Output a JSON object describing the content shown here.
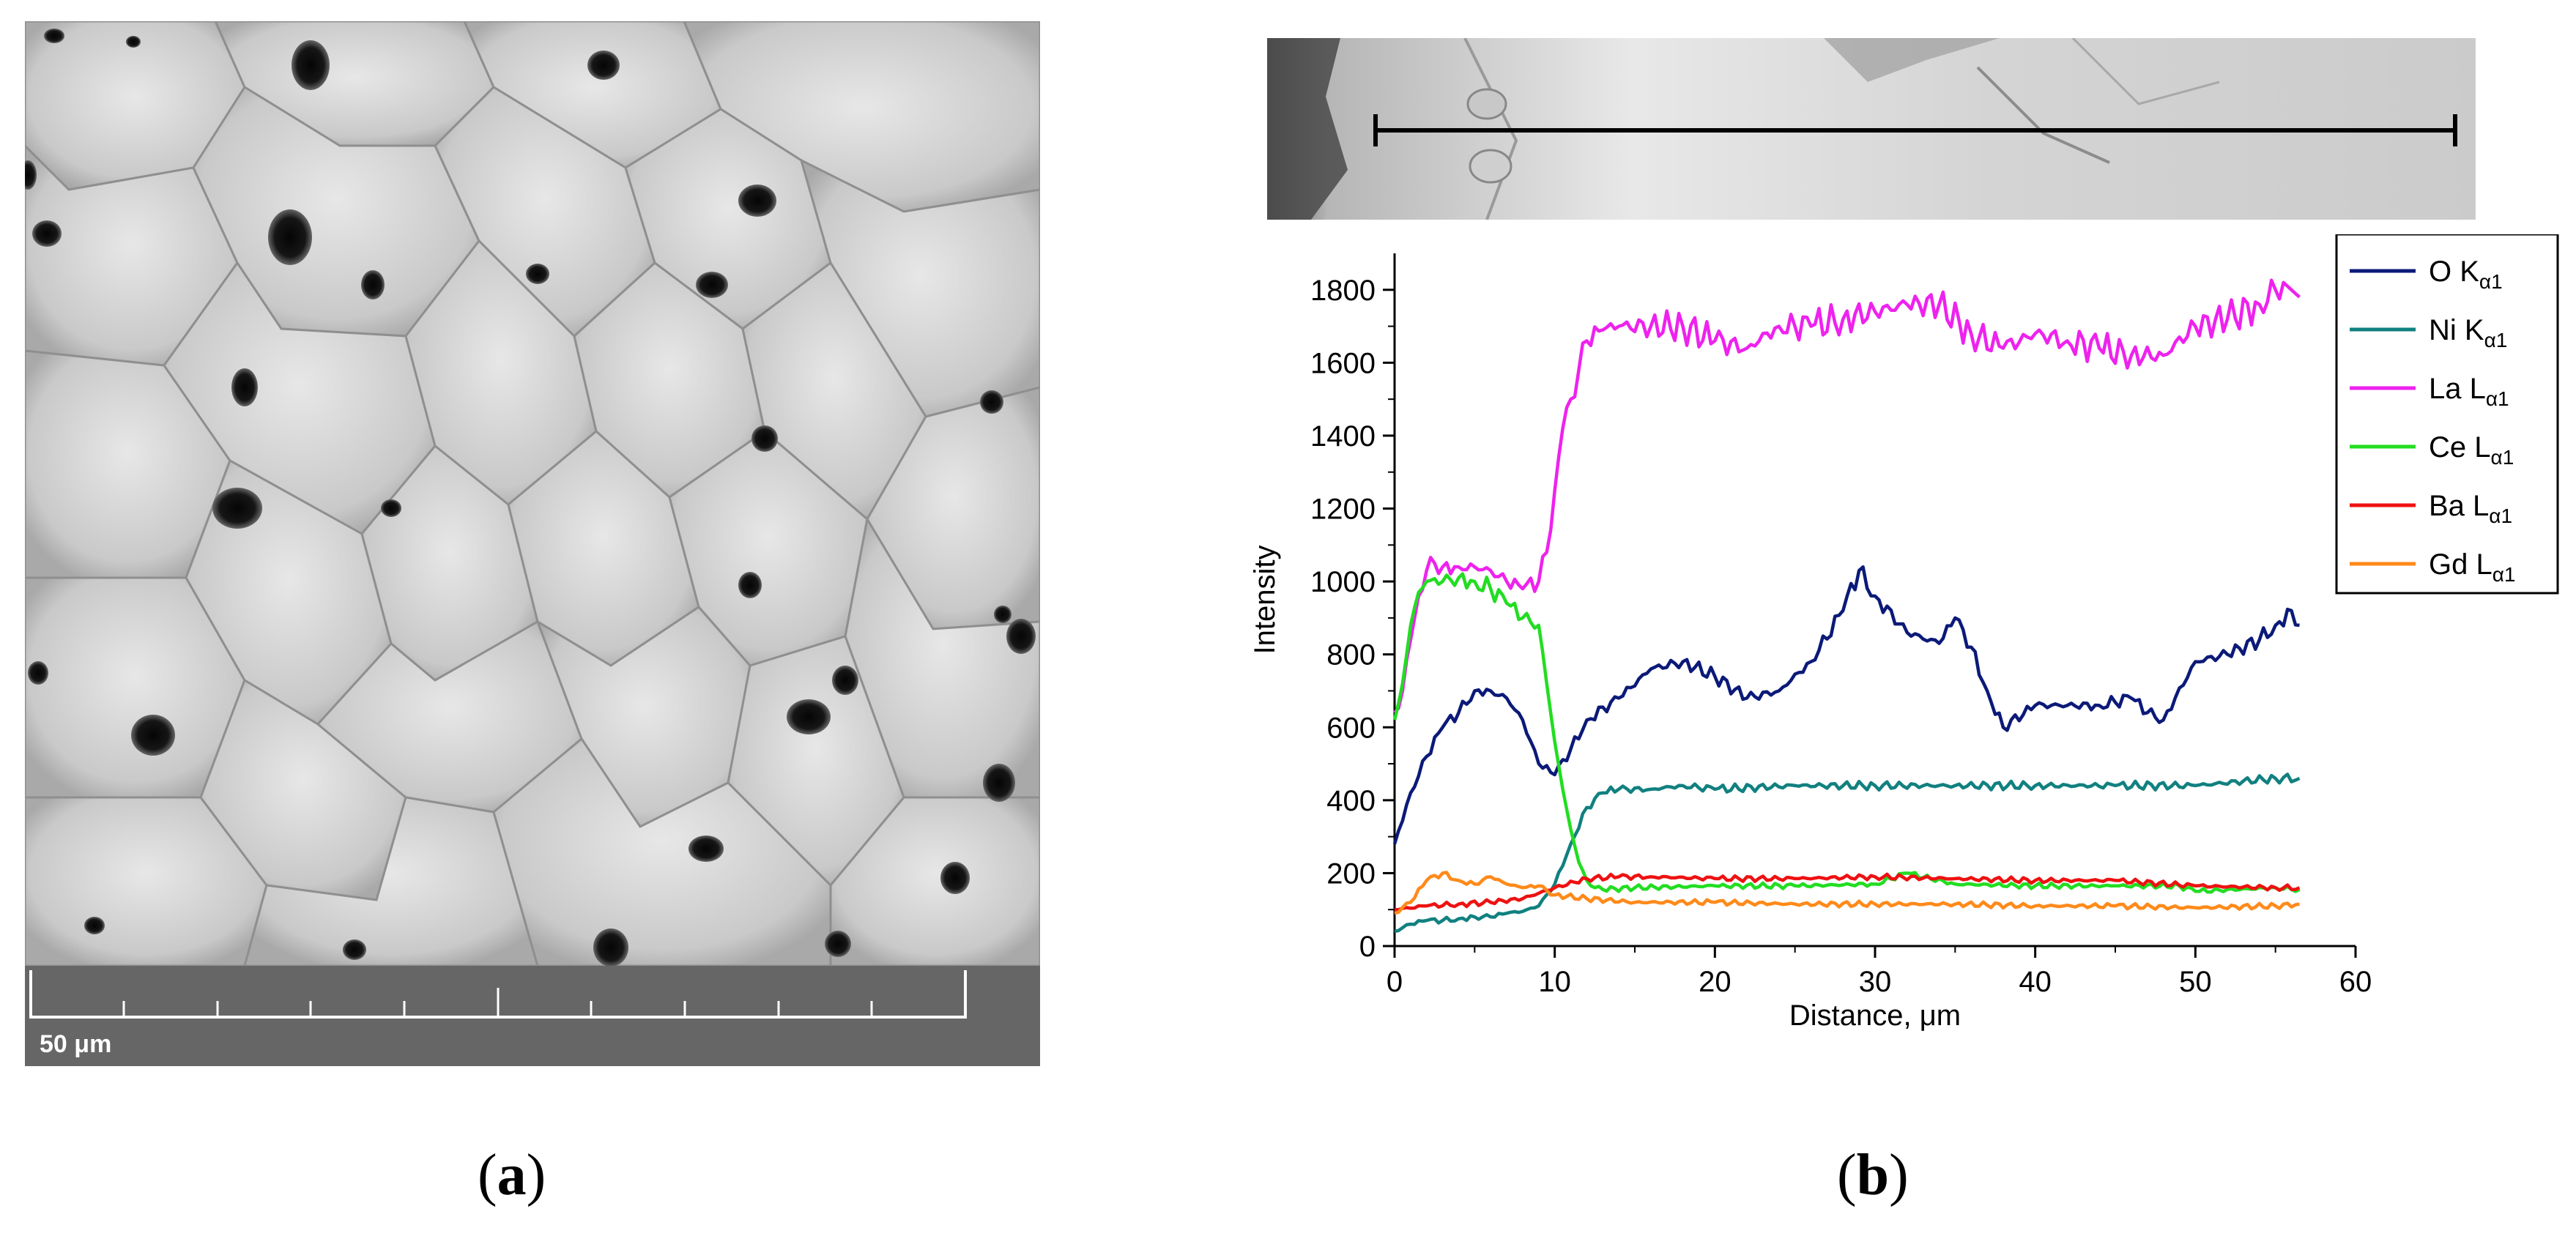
{
  "panel_a": {
    "scale_label": "50 μm",
    "caption_letter": "a"
  },
  "panel_b": {
    "caption_letter": "b"
  },
  "colors": {
    "O": "#0b1a78",
    "Ni": "#118080",
    "La": "#ee22ee",
    "Ce": "#22dd22",
    "Ba": "#ee1111",
    "Gd": "#ff8a1a"
  },
  "chart_data": {
    "type": "line",
    "title": "",
    "xlabel": "Distance, μm",
    "ylabel": "Intensity",
    "xlim": [
      0,
      60
    ],
    "ylim": [
      0,
      1900
    ],
    "xticks": [
      "0",
      "10",
      "20",
      "30",
      "40",
      "50",
      "60"
    ],
    "yticks": [
      "0",
      "200",
      "400",
      "600",
      "800",
      "1000",
      "1200",
      "1400",
      "1600",
      "1800"
    ],
    "xtick_values": [
      0,
      10,
      20,
      30,
      40,
      50,
      60
    ],
    "ytick_values": [
      0,
      200,
      400,
      600,
      800,
      1000,
      1200,
      1400,
      1600,
      1800
    ],
    "legend_position": "right",
    "series": [
      {
        "name": "O",
        "line": "K",
        "sub": "α1",
        "color_key": "O",
        "x": [
          0,
          1,
          2,
          3,
          4,
          5,
          6,
          7,
          8,
          9,
          10,
          11,
          12,
          14,
          16,
          18,
          20,
          22,
          24,
          26,
          28,
          29,
          30,
          32,
          34,
          35,
          36,
          37,
          38,
          40,
          42,
          44,
          46,
          47,
          48,
          50,
          52,
          54,
          55,
          56,
          56.5
        ],
        "y": [
          280,
          420,
          520,
          600,
          640,
          700,
          700,
          680,
          620,
          500,
          470,
          540,
          620,
          680,
          760,
          780,
          740,
          680,
          700,
          780,
          920,
          1030,
          960,
          860,
          830,
          900,
          820,
          700,
          600,
          660,
          660,
          660,
          680,
          640,
          620,
          780,
          800,
          840,
          880,
          920,
          880
        ]
      },
      {
        "name": "Ni",
        "line": "K",
        "sub": "α1",
        "color_key": "Ni",
        "x": [
          0,
          1,
          2,
          3,
          4,
          5,
          6,
          7,
          8,
          9,
          10,
          11,
          12,
          13,
          14,
          16,
          18,
          20,
          25,
          30,
          35,
          40,
          45,
          50,
          55,
          56.5
        ],
        "y": [
          40,
          60,
          70,
          70,
          75,
          80,
          80,
          90,
          95,
          110,
          170,
          280,
          380,
          420,
          430,
          430,
          440,
          430,
          440,
          440,
          440,
          440,
          440,
          440,
          460,
          460
        ]
      },
      {
        "name": "La",
        "line": "L",
        "sub": "α1",
        "color_key": "La",
        "x": [
          0,
          0.5,
          1,
          1.5,
          2,
          2.5,
          3,
          4,
          5,
          6,
          7,
          8,
          9,
          9.5,
          10,
          10.5,
          11,
          11.5,
          12,
          13,
          14,
          16,
          18,
          20,
          22,
          24,
          26,
          28,
          30,
          32,
          34,
          36,
          38,
          40,
          42,
          44,
          46,
          48,
          50,
          52,
          54,
          55,
          56,
          56.5
        ],
        "y": [
          640,
          700,
          840,
          960,
          1030,
          1050,
          1040,
          1040,
          1040,
          1030,
          1000,
          980,
          1000,
          1080,
          1250,
          1420,
          1500,
          1580,
          1660,
          1690,
          1700,
          1700,
          1700,
          1660,
          1640,
          1700,
          1700,
          1720,
          1740,
          1760,
          1760,
          1680,
          1640,
          1680,
          1660,
          1640,
          1620,
          1620,
          1700,
          1720,
          1760,
          1800,
          1800,
          1780
        ]
      },
      {
        "name": "Ce",
        "line": "L",
        "sub": "α1",
        "color_key": "Ce",
        "x": [
          0,
          0.5,
          1,
          1.5,
          2,
          3,
          4,
          5,
          6,
          7,
          8,
          9,
          9.5,
          10,
          10.5,
          11,
          11.5,
          12,
          12.5,
          13,
          15,
          20,
          25,
          30,
          32,
          35,
          40,
          45,
          49,
          50,
          55,
          56.5
        ],
        "y": [
          620,
          720,
          880,
          970,
          1000,
          1000,
          1010,
          1000,
          980,
          940,
          900,
          880,
          720,
          560,
          430,
          320,
          230,
          180,
          160,
          155,
          160,
          165,
          165,
          170,
          200,
          170,
          165,
          165,
          165,
          150,
          160,
          155
        ]
      },
      {
        "name": "Ba",
        "line": "L",
        "sub": "α1",
        "color_key": "Ba",
        "x": [
          0,
          2,
          4,
          6,
          8,
          10,
          12,
          14,
          16,
          20,
          25,
          30,
          35,
          40,
          45,
          50,
          55,
          56.5
        ],
        "y": [
          100,
          110,
          115,
          120,
          130,
          160,
          185,
          190,
          190,
          185,
          185,
          190,
          185,
          180,
          180,
          165,
          160,
          160
        ]
      },
      {
        "name": "Gd",
        "line": "L",
        "sub": "α1",
        "color_key": "Gd",
        "x": [
          0,
          1,
          2,
          3,
          4,
          5,
          6,
          7,
          8,
          9,
          10,
          12,
          15,
          20,
          25,
          30,
          35,
          40,
          45,
          50,
          55,
          56.5
        ],
        "y": [
          90,
          120,
          180,
          200,
          180,
          170,
          190,
          170,
          160,
          165,
          140,
          130,
          120,
          120,
          115,
          115,
          115,
          110,
          110,
          105,
          110,
          115
        ]
      }
    ]
  }
}
